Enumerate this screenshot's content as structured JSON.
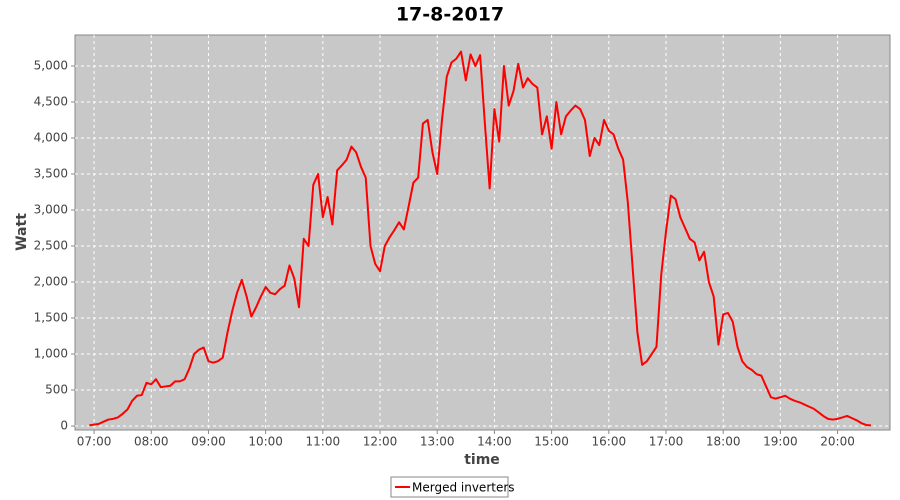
{
  "chart_data": {
    "type": "line",
    "title": "17-8-2017",
    "xlabel": "time",
    "ylabel": "Watt",
    "x": [
      "06:55",
      "07:00",
      "07:05",
      "07:10",
      "07:15",
      "07:20",
      "07:25",
      "07:30",
      "07:35",
      "07:40",
      "07:45",
      "07:50",
      "07:55",
      "08:00",
      "08:05",
      "08:10",
      "08:15",
      "08:20",
      "08:25",
      "08:30",
      "08:35",
      "08:40",
      "08:45",
      "08:50",
      "08:55",
      "09:00",
      "09:05",
      "09:10",
      "09:15",
      "09:20",
      "09:25",
      "09:30",
      "09:35",
      "09:40",
      "09:45",
      "09:50",
      "09:55",
      "10:00",
      "10:05",
      "10:10",
      "10:15",
      "10:20",
      "10:25",
      "10:30",
      "10:35",
      "10:40",
      "10:45",
      "10:50",
      "10:55",
      "11:00",
      "11:05",
      "11:10",
      "11:15",
      "11:20",
      "11:25",
      "11:30",
      "11:35",
      "11:40",
      "11:45",
      "11:50",
      "11:55",
      "12:00",
      "12:05",
      "12:10",
      "12:15",
      "12:20",
      "12:25",
      "12:30",
      "12:35",
      "12:40",
      "12:45",
      "12:50",
      "12:55",
      "13:00",
      "13:05",
      "13:10",
      "13:15",
      "13:20",
      "13:25",
      "13:30",
      "13:35",
      "13:40",
      "13:45",
      "13:50",
      "13:55",
      "14:00",
      "14:05",
      "14:10",
      "14:15",
      "14:20",
      "14:25",
      "14:30",
      "14:35",
      "14:40",
      "14:45",
      "14:50",
      "14:55",
      "15:00",
      "15:05",
      "15:10",
      "15:15",
      "15:20",
      "15:25",
      "15:30",
      "15:35",
      "15:40",
      "15:45",
      "15:50",
      "15:55",
      "16:00",
      "16:05",
      "16:10",
      "16:15",
      "16:20",
      "16:25",
      "16:30",
      "16:35",
      "16:40",
      "16:45",
      "16:50",
      "16:55",
      "17:00",
      "17:05",
      "17:10",
      "17:15",
      "17:20",
      "17:25",
      "17:30",
      "17:35",
      "17:40",
      "17:45",
      "17:50",
      "17:55",
      "18:00",
      "18:05",
      "18:10",
      "18:15",
      "18:20",
      "18:25",
      "18:30",
      "18:35",
      "18:40",
      "18:45",
      "18:50",
      "18:55",
      "19:00",
      "19:05",
      "19:10",
      "19:15",
      "19:20",
      "19:25",
      "19:30",
      "19:35",
      "19:40",
      "19:45",
      "19:50",
      "19:55",
      "20:00",
      "20:05",
      "20:10",
      "20:15",
      "20:20",
      "20:25",
      "20:30",
      "20:35"
    ],
    "series": [
      {
        "name": "Merged inverters",
        "color": "#ff0000",
        "values": [
          10,
          20,
          30,
          60,
          90,
          100,
          120,
          170,
          230,
          350,
          420,
          430,
          600,
          580,
          650,
          540,
          550,
          560,
          620,
          620,
          650,
          800,
          1000,
          1060,
          1090,
          900,
          880,
          900,
          950,
          1300,
          1600,
          1850,
          2030,
          1800,
          1520,
          1650,
          1800,
          1930,
          1850,
          1830,
          1900,
          1950,
          2230,
          2050,
          1650,
          2600,
          2500,
          3350,
          3500,
          2900,
          3180,
          2800,
          3550,
          3620,
          3700,
          3880,
          3800,
          3600,
          3450,
          2500,
          2250,
          2150,
          2500,
          2620,
          2720,
          2830,
          2730,
          3050,
          3380,
          3450,
          4200,
          4250,
          3800,
          3500,
          4250,
          4850,
          5050,
          5100,
          5200,
          4800,
          5160,
          5000,
          5150,
          4200,
          3300,
          4400,
          3950,
          5000,
          4450,
          4650,
          5030,
          4700,
          4830,
          4750,
          4700,
          4050,
          4300,
          3850,
          4500,
          4050,
          4300,
          4380,
          4450,
          4400,
          4250,
          3750,
          4000,
          3900,
          4250,
          4100,
          4050,
          3850,
          3700,
          3100,
          2200,
          1300,
          850,
          900,
          1000,
          1100,
          2100,
          2700,
          3200,
          3150,
          2900,
          2750,
          2600,
          2550,
          2300,
          2420,
          2000,
          1800,
          1130,
          1550,
          1570,
          1450,
          1100,
          900,
          820,
          780,
          720,
          700,
          550,
          400,
          380,
          400,
          420,
          380,
          350,
          330,
          300,
          270,
          240,
          190,
          140,
          100,
          90,
          100,
          120,
          140,
          110,
          80,
          40,
          15,
          10
        ]
      }
    ],
    "xlim": [
      "06:40",
      "20:55"
    ],
    "xticks": [
      "07:00",
      "08:00",
      "09:00",
      "10:00",
      "11:00",
      "12:00",
      "13:00",
      "14:00",
      "15:00",
      "16:00",
      "17:00",
      "18:00",
      "19:00",
      "20:00"
    ],
    "ylim": [
      -55,
      5430
    ],
    "yticks": [
      0,
      {
        "value": 500,
        "label": "500"
      },
      {
        "value": 1000,
        "label": "1,000"
      },
      {
        "value": 1500,
        "label": "1,500"
      },
      {
        "value": 2000,
        "label": "2,000"
      },
      {
        "value": 2500,
        "label": "2,500"
      },
      {
        "value": 3000,
        "label": "3,000"
      },
      {
        "value": 3500,
        "label": "3,500"
      },
      {
        "value": 4000,
        "label": "4,000"
      },
      {
        "value": 4500,
        "label": "4,500"
      },
      {
        "value": 5000,
        "label": "5,000"
      }
    ],
    "grid": true,
    "legend": "bottom"
  }
}
